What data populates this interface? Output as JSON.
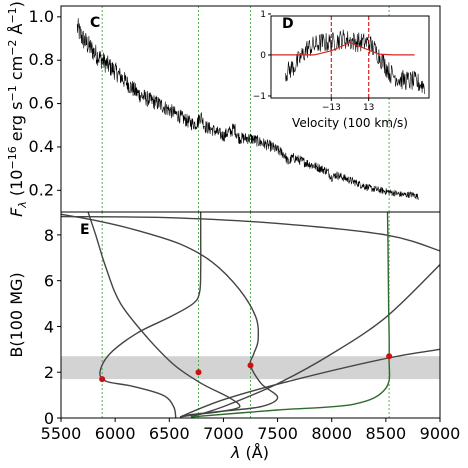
{
  "chart_data": [
    {
      "panel": "C",
      "type": "line",
      "ylabel": "F_λ (10^-16 erg s^-1 cm^-2 Å^-1)",
      "ylabel_parts": [
        "F",
        "λ",
        " (10",
        "−16",
        " erg s",
        "−1",
        " cm",
        "−2",
        " Å",
        "−1",
        ")"
      ],
      "xlim": [
        5500,
        9000
      ],
      "ylim": [
        0.1,
        1.05
      ],
      "yticks": [
        "0.2",
        "0.4",
        "0.6",
        "0.8",
        "1.0"
      ],
      "ytick_values": [
        0.2,
        0.4,
        0.6,
        0.8,
        1.0
      ],
      "vlines": [
        5880,
        6770,
        7250,
        8530
      ],
      "vline_color": "#2ca02c",
      "spectrum_color": "#000000",
      "spectrum_range": [
        5650,
        8800
      ],
      "spectrum_nodes": [
        [
          5650,
          0.95
        ],
        [
          5700,
          0.9
        ],
        [
          5800,
          0.84
        ],
        [
          5900,
          0.79
        ],
        [
          6000,
          0.75
        ],
        [
          6100,
          0.7
        ],
        [
          6200,
          0.65
        ],
        [
          6300,
          0.62
        ],
        [
          6400,
          0.6
        ],
        [
          6500,
          0.57
        ],
        [
          6600,
          0.54
        ],
        [
          6700,
          0.51
        ],
        [
          6800,
          0.5
        ],
        [
          6900,
          0.48
        ],
        [
          7000,
          0.45
        ],
        [
          7050,
          0.47
        ],
        [
          7150,
          0.44
        ],
        [
          7250,
          0.44
        ],
        [
          7350,
          0.42
        ],
        [
          7450,
          0.4
        ],
        [
          7550,
          0.37
        ],
        [
          7650,
          0.35
        ],
        [
          7700,
          0.34
        ],
        [
          7750,
          0.33
        ],
        [
          7800,
          0.32
        ],
        [
          7850,
          0.31
        ],
        [
          7950,
          0.29
        ],
        [
          8050,
          0.27
        ],
        [
          8150,
          0.25
        ],
        [
          8250,
          0.23
        ],
        [
          8350,
          0.21
        ],
        [
          8450,
          0.2
        ],
        [
          8550,
          0.19
        ],
        [
          8650,
          0.18
        ],
        [
          8750,
          0.18
        ],
        [
          8800,
          0.17
        ]
      ],
      "spectrum_features": [
        {
          "x": 6790,
          "dy": 0.04
        },
        {
          "x": 7100,
          "dy": 0.03
        },
        {
          "x": 7600,
          "dy": -0.03
        },
        {
          "x": 8000,
          "dy": -0.02
        }
      ]
    },
    {
      "panel": "D",
      "type": "line",
      "xlabel": "Velocity (100 km/s)",
      "yticks": [
        "1",
        "0",
        "−1"
      ],
      "ytick_values": [
        1,
        0,
        -1
      ],
      "ylim": [
        -1.05,
        0.95
      ],
      "xlim": [
        -55,
        55
      ],
      "xticks": [
        "−13",
        "13"
      ],
      "xtick_values": [
        -13,
        13
      ],
      "vlines": [
        -13,
        13
      ],
      "vline_color": "#d62728",
      "model_color": "#d62728",
      "model": [
        [
          -55,
          0.0
        ],
        [
          -25,
          0.0
        ],
        [
          -13,
          0.1
        ],
        [
          0,
          0.3
        ],
        [
          13,
          0.12
        ],
        [
          20,
          0.02
        ],
        [
          30,
          0.0
        ],
        [
          45,
          0.0
        ]
      ],
      "data_nodes": [
        [
          -45,
          -0.45
        ],
        [
          -38,
          -0.25
        ],
        [
          -30,
          0.15
        ],
        [
          -20,
          0.3
        ],
        [
          -13,
          0.3
        ],
        [
          -5,
          0.4
        ],
        [
          0,
          0.35
        ],
        [
          8,
          0.3
        ],
        [
          13,
          0.3
        ],
        [
          20,
          0.0
        ],
        [
          28,
          -0.45
        ],
        [
          35,
          -0.6
        ],
        [
          45,
          -0.65
        ],
        [
          52,
          -0.75
        ]
      ]
    },
    {
      "panel": "E",
      "type": "line",
      "xlabel": "λ (Å)",
      "xlabel_parts": [
        "λ",
        " (Å)"
      ],
      "ylabel": "B(100 MG)",
      "xlim": [
        5500,
        9000
      ],
      "ylim": [
        0,
        9
      ],
      "xticks": [
        "5500",
        "6000",
        "6500",
        "7000",
        "7500",
        "8000",
        "8500",
        "9000"
      ],
      "xtick_values": [
        5500,
        6000,
        6500,
        7000,
        7500,
        8000,
        8500,
        9000
      ],
      "yticks": [
        "0",
        "2",
        "4",
        "6",
        "8"
      ],
      "ytick_values": [
        0,
        2,
        4,
        6,
        8
      ],
      "band": [
        1.7,
        2.7
      ],
      "band_color": "#d3d3d3",
      "curve_color": "#444444",
      "vlines": [
        5880,
        6770,
        7250,
        8530
      ],
      "vline_color": "#2ca02c",
      "points": [
        [
          5880,
          1.7
        ],
        [
          6770,
          2.0
        ],
        [
          7250,
          2.3
        ],
        [
          8530,
          2.7
        ]
      ],
      "point_color": "#cc1111",
      "curves": [
        {
          "points": [
            [
              5750,
              9.0
            ],
            [
              5820,
              8.0
            ],
            [
              5920,
              6.5
            ],
            [
              6050,
              5.0
            ],
            [
              6300,
              3.5
            ],
            [
              6550,
              2.3
            ],
            [
              6800,
              1.5
            ],
            [
              7050,
              0.9
            ],
            [
              7150,
              0.5
            ],
            [
              7000,
              0.3
            ],
            [
              6800,
              0.18
            ],
            [
              6600,
              0.05
            ]
          ]
        },
        {
          "points": [
            [
              6560,
              0
            ],
            [
              6540,
              0.5
            ],
            [
              6440,
              1.0
            ],
            [
              6150,
              1.4
            ],
            [
              5920,
              1.6
            ],
            [
              5860,
              2.0
            ],
            [
              5950,
              2.8
            ],
            [
              6200,
              3.7
            ],
            [
              6500,
              4.4
            ],
            [
              6720,
              5.0
            ],
            [
              6780,
              5.5
            ],
            [
              6790,
              6.5
            ],
            [
              6790,
              8.0
            ],
            [
              6790,
              9.0
            ]
          ]
        },
        {
          "points": [
            [
              5500,
              8.9
            ],
            [
              5850,
              8.6
            ],
            [
              6200,
              8.2
            ],
            [
              6600,
              7.6
            ],
            [
              6900,
              6.8
            ],
            [
              7150,
              5.6
            ],
            [
              7300,
              4.4
            ],
            [
              7320,
              3.4
            ],
            [
              7280,
              2.8
            ],
            [
              7250,
              2.3
            ],
            [
              7350,
              1.5
            ],
            [
              7500,
              0.9
            ],
            [
              7350,
              0.5
            ],
            [
              7000,
              0.3
            ],
            [
              6700,
              0.15
            ],
            [
              6600,
              0.05
            ]
          ]
        },
        {
          "points": [
            [
              5500,
              8.8
            ],
            [
              6500,
              8.75
            ],
            [
              7500,
              8.5
            ],
            [
              8500,
              8.0
            ],
            [
              9000,
              7.3
            ]
          ]
        },
        {
          "points": [
            [
              6700,
              0.05
            ],
            [
              7000,
              0.5
            ],
            [
              7500,
              1.5
            ],
            [
              8000,
              2.8
            ],
            [
              8500,
              4.4
            ],
            [
              9000,
              6.7
            ]
          ]
        },
        {
          "points": [
            [
              6600,
              0.05
            ],
            [
              7000,
              0.8
            ],
            [
              7600,
              1.6
            ],
            [
              8500,
              2.6
            ],
            [
              9000,
              3.0
            ]
          ]
        },
        {
          "points": [
            [
              6700,
              0.05
            ],
            [
              7500,
              0.35
            ],
            [
              8200,
              0.6
            ],
            [
              8500,
              1.3
            ],
            [
              8530,
              2.7
            ],
            [
              8525,
              5.0
            ],
            [
              8520,
              7.5
            ],
            [
              8515,
              9.0
            ]
          ],
          "color": "#2e6b2e"
        }
      ]
    }
  ]
}
